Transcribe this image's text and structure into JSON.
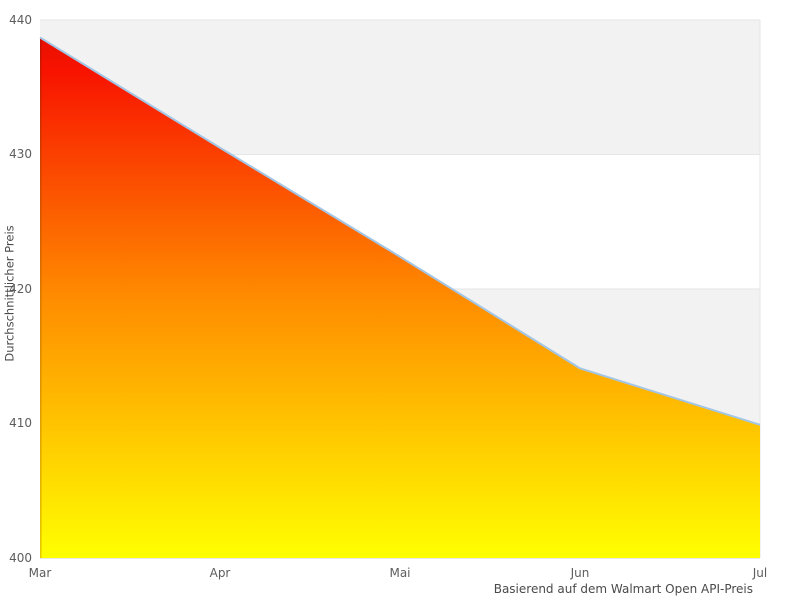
{
  "chart_data": {
    "type": "area",
    "categories": [
      "Mar",
      "Apr",
      "Mai",
      "Jun",
      "Jul"
    ],
    "values": [
      438.7,
      430.5,
      422.4,
      414.1,
      409.9
    ],
    "title": "",
    "xlabel": "",
    "ylabel": "Durchschnittlicher Preis",
    "caption": "Basierend auf dem Walmart Open API-Preis",
    "ylim": [
      400,
      440
    ],
    "yticks": [
      400,
      410,
      420,
      430,
      440
    ],
    "grid": "horizontal-bands",
    "legend": "none",
    "gray_band_value_ranges": [
      [
        410,
        420
      ],
      [
        430,
        440
      ]
    ],
    "colors": {
      "line": "#a3c6e6",
      "gradient_top": "#e61000",
      "gradient_upper": "#f81200",
      "gradient_mid": "#ff8c00",
      "gradient_bottom": "#ffff00",
      "edge_top": "#c50d00",
      "edge_mid": "#d97a00",
      "edge_bottom": "#e6cc00",
      "band_gray": "#f2f2f2",
      "band_border": "#e6e6e6",
      "axis_line": "#cfcfcf",
      "tick_text": "#5d5d5d",
      "label_text": "#4a4a4a",
      "background": "#ffffff"
    }
  }
}
